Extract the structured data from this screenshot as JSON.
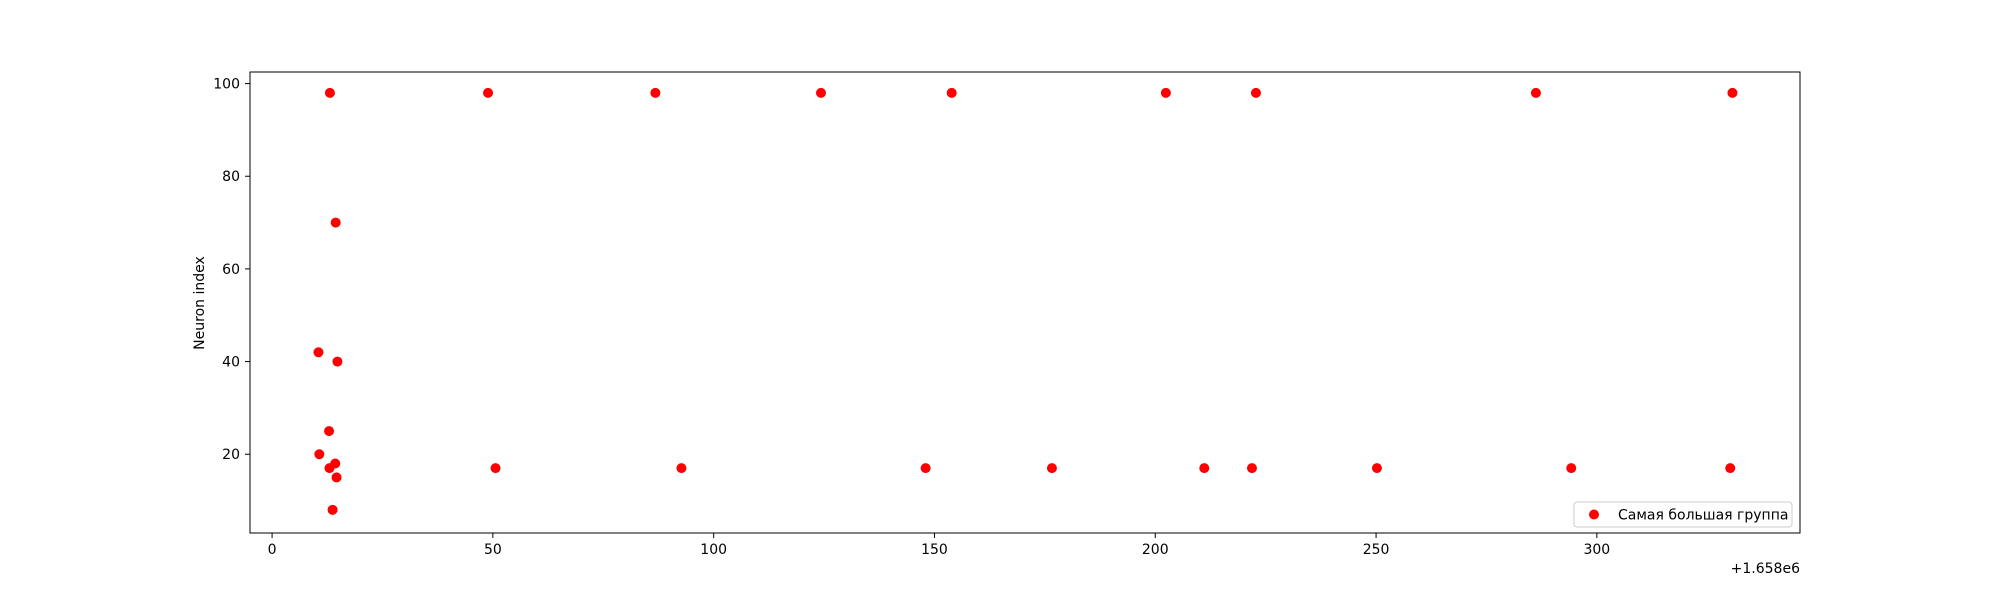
{
  "chart_data": {
    "type": "scatter",
    "title": "",
    "xlabel": "",
    "ylabel": "Neuron index",
    "x_offset_label": "+1.658e6",
    "xlim": [
      -5,
      346
    ],
    "ylim": [
      3,
      102.5
    ],
    "x_ticks": [
      0,
      50,
      100,
      150,
      200,
      250,
      300
    ],
    "y_ticks": [
      20,
      40,
      60,
      80,
      100
    ],
    "grid": false,
    "legend_position": "lower-right",
    "series": [
      {
        "name": "Самая большая группа",
        "color": "#ff0000",
        "points": [
          [
            13.1,
            98
          ],
          [
            48.9,
            98
          ],
          [
            86.8,
            98
          ],
          [
            124.3,
            98
          ],
          [
            153.9,
            98
          ],
          [
            202.4,
            98
          ],
          [
            222.8,
            98
          ],
          [
            286.2,
            98
          ],
          [
            330.7,
            98
          ],
          [
            14.4,
            70
          ],
          [
            10.5,
            42
          ],
          [
            14.8,
            40
          ],
          [
            12.9,
            25
          ],
          [
            10.7,
            20
          ],
          [
            14.3,
            18
          ],
          [
            13.0,
            17
          ],
          [
            14.6,
            15
          ],
          [
            13.7,
            8
          ],
          [
            50.6,
            17
          ],
          [
            92.7,
            17
          ],
          [
            148.0,
            17
          ],
          [
            176.6,
            17
          ],
          [
            211.1,
            17
          ],
          [
            221.9,
            17
          ],
          [
            250.2,
            17
          ],
          [
            294.2,
            17
          ],
          [
            330.2,
            17
          ]
        ]
      }
    ]
  }
}
